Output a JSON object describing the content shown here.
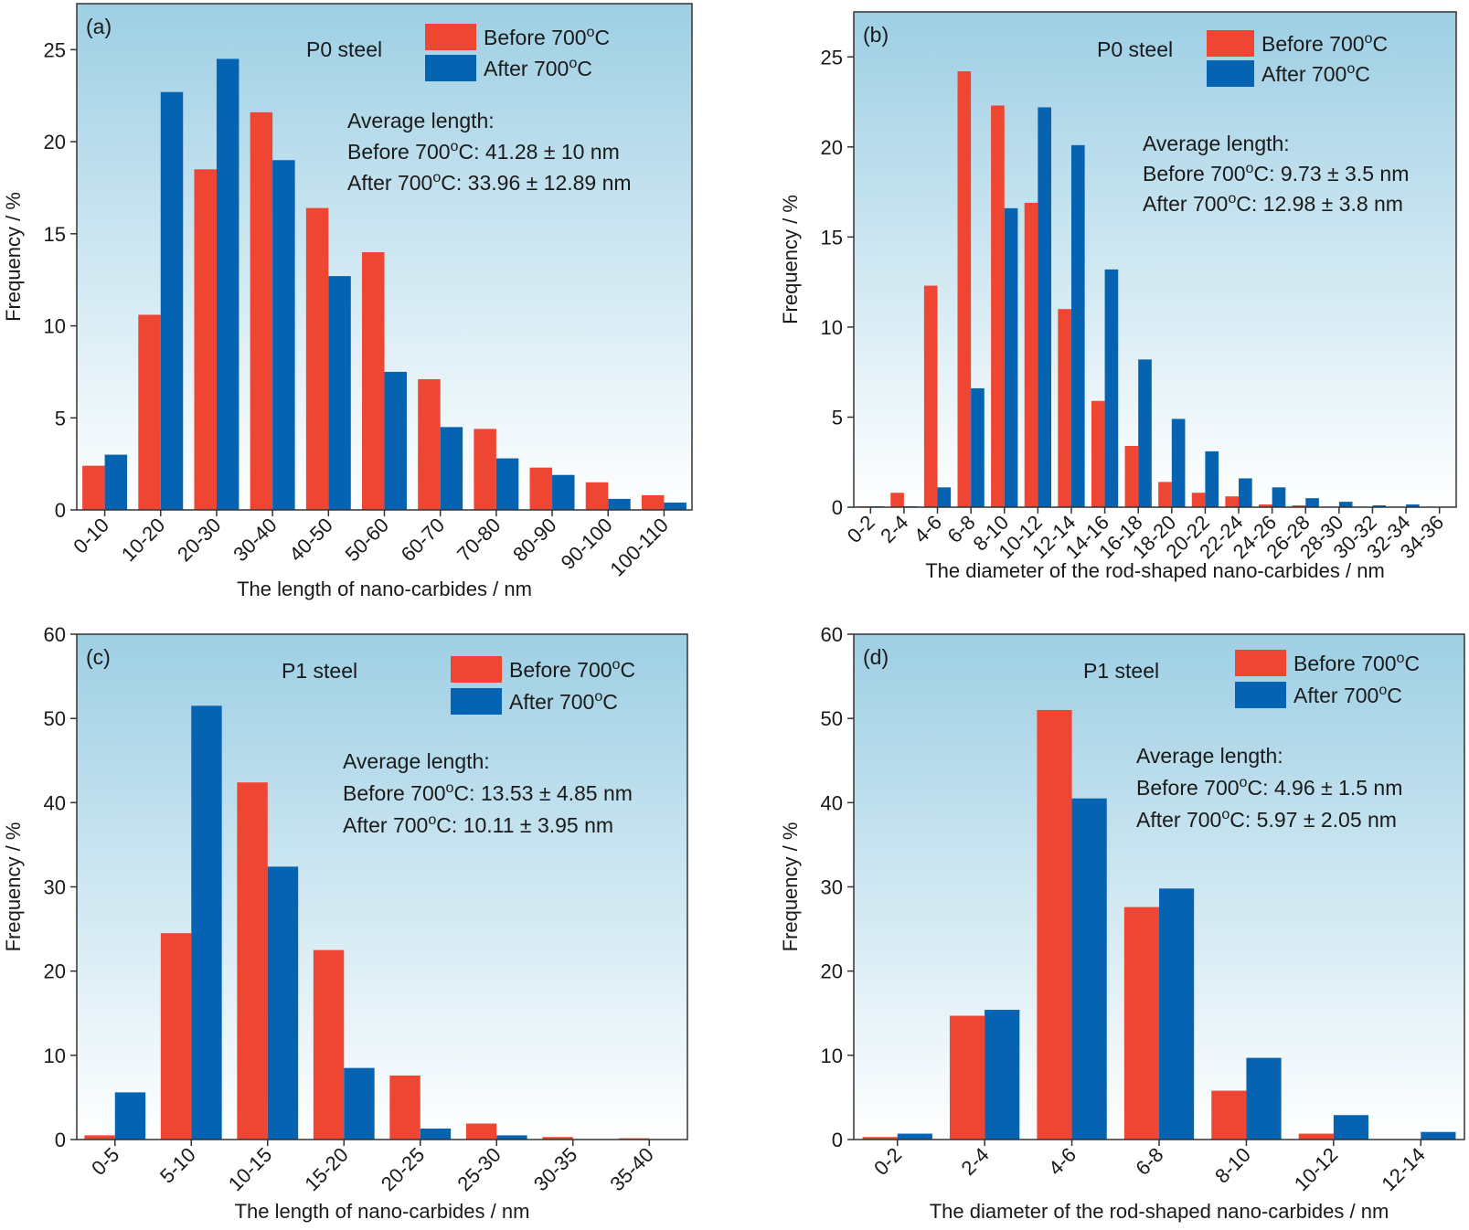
{
  "colors": {
    "before": "#ef4533",
    "after": "#0563b2",
    "bg_top": "#9ecfe4",
    "bg_bottom": "#ffffff",
    "frame": "#333333"
  },
  "chart_data": [
    {
      "type": "bar",
      "panel_label": "(a)",
      "steel_label": "P0 steel",
      "categories": [
        "0-10",
        "10-20",
        "20-30",
        "30-40",
        "40-50",
        "50-60",
        "60-70",
        "70-80",
        "80-90",
        "90-100",
        "100-110"
      ],
      "series": [
        {
          "name": "Before  700°C",
          "values": [
            2.4,
            10.6,
            18.5,
            21.6,
            16.4,
            14.0,
            7.1,
            4.4,
            2.3,
            1.5,
            0.8
          ]
        },
        {
          "name": "After 700°C",
          "values": [
            3.0,
            22.7,
            24.5,
            19.0,
            12.7,
            7.5,
            4.5,
            2.8,
            1.9,
            0.6,
            0.4
          ]
        }
      ],
      "annotations": [
        "Average length:",
        "Before 700°C: 41.28 ± 10 nm",
        "After 700°C: 33.96 ± 12.89 nm"
      ],
      "xlabel": "The length of nano-carbides / nm",
      "ylabel": "Frequency / %",
      "ylim": [
        0,
        27.5
      ],
      "yticks": [
        0,
        5,
        10,
        15,
        20,
        25
      ],
      "legend": "top-right",
      "grid": false
    },
    {
      "type": "bar",
      "panel_label": "(b)",
      "steel_label": "P0 steel",
      "categories": [
        "0-2",
        "2-4",
        "4-6",
        "6-8",
        "8-10",
        "10-12",
        "12-14",
        "14-16",
        "16-18",
        "18-20",
        "20-22",
        "22-24",
        "24-26",
        "26-28",
        "28-30",
        "30-32",
        "32-34",
        "34-36"
      ],
      "series": [
        {
          "name": "Before 700°C",
          "values": [
            0.05,
            0.8,
            12.3,
            24.2,
            22.3,
            16.9,
            11.0,
            5.9,
            3.4,
            1.4,
            0.8,
            0.6,
            0.15,
            0.1,
            0,
            0,
            0,
            0
          ]
        },
        {
          "name": "After 700°C",
          "values": [
            0.05,
            0.05,
            1.1,
            6.6,
            16.6,
            22.2,
            20.1,
            13.2,
            8.2,
            4.9,
            3.1,
            1.6,
            1.1,
            0.5,
            0.3,
            0.1,
            0.15,
            0
          ]
        }
      ],
      "annotations": [
        "Average length:",
        "Before 700°C: 9.73 ± 3.5 nm",
        "After 700°C: 12.98 ± 3.8 nm"
      ],
      "xlabel": "The diameter of the rod-shaped nano-carbides / nm",
      "ylabel": "Frequency / %",
      "ylim": [
        0,
        27.5
      ],
      "yticks": [
        0,
        5,
        10,
        15,
        20,
        25
      ],
      "legend": "top-right",
      "grid": false
    },
    {
      "type": "bar",
      "panel_label": "(c)",
      "steel_label": "P1 steel",
      "categories": [
        "0-5",
        "5-10",
        "10-15",
        "15-20",
        "20-25",
        "25-30",
        "30-35",
        "35-40"
      ],
      "series": [
        {
          "name": "Before 700°C",
          "values": [
            0.5,
            24.5,
            42.4,
            22.5,
            7.6,
            1.9,
            0.3,
            0.15
          ]
        },
        {
          "name": "After 700°C",
          "values": [
            5.6,
            51.5,
            32.4,
            8.5,
            1.3,
            0.5,
            0.05,
            0
          ]
        }
      ],
      "annotations": [
        "Average length:",
        "Before 700°C: 13.53 ± 4.85 nm",
        "After 700°C: 10.11 ± 3.95 nm"
      ],
      "xlabel": "The length of nano-carbides / nm",
      "ylabel": "Frequency / %",
      "ylim": [
        0,
        60
      ],
      "yticks": [
        0,
        10,
        20,
        30,
        40,
        50,
        60
      ],
      "legend": "top-right",
      "grid": false
    },
    {
      "type": "bar",
      "panel_label": "(d)",
      "steel_label": "P1 steel",
      "categories": [
        "0-2",
        "2-4",
        "4-6",
        "6-8",
        "8-10",
        "10-12",
        "12-14"
      ],
      "series": [
        {
          "name": "Before 700°C",
          "values": [
            0.3,
            14.7,
            51.0,
            27.6,
            5.8,
            0.7,
            0
          ]
        },
        {
          "name": "After 700°C",
          "values": [
            0.7,
            15.4,
            40.5,
            29.8,
            9.7,
            2.9,
            0.9
          ]
        }
      ],
      "annotations": [
        "Average length:",
        "Before 700°C: 4.96 ± 1.5 nm",
        "After 700°C: 5.97 ± 2.05 nm"
      ],
      "xlabel": "The diameter of the rod-shaped nano-carbides / nm",
      "ylabel": "Frequency / %",
      "ylim": [
        0,
        60
      ],
      "yticks": [
        0,
        10,
        20,
        30,
        40,
        50,
        60
      ],
      "legend": "top-right",
      "grid": false
    }
  ]
}
